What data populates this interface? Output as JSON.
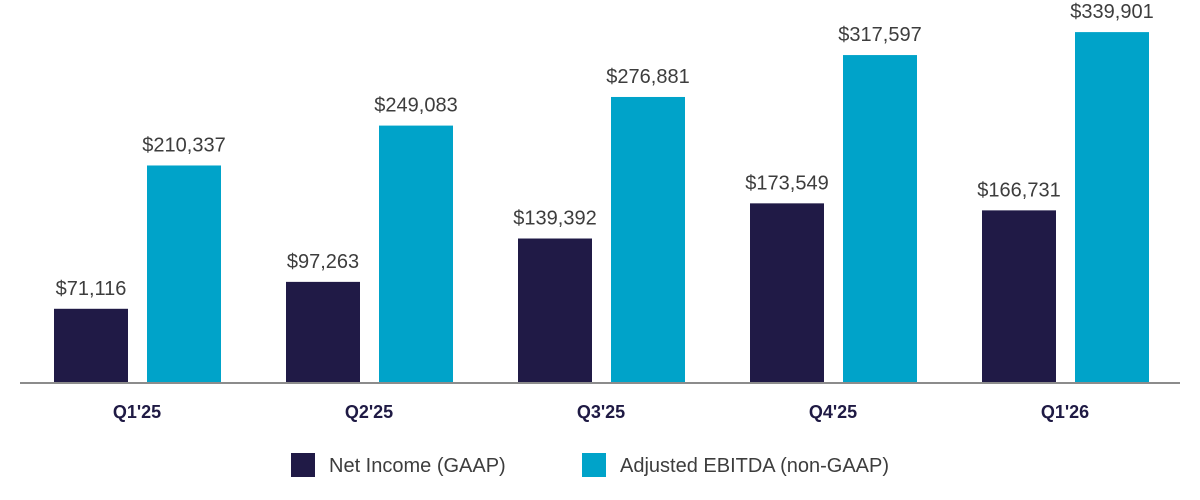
{
  "chart_data": {
    "type": "bar",
    "categories": [
      "Q1'25",
      "Q2'25",
      "Q3'25",
      "Q4'25",
      "Q1'26"
    ],
    "series": [
      {
        "name": "Net Income (GAAP)",
        "color": "#201a46",
        "values": [
          71116,
          97263,
          139392,
          173549,
          166731
        ],
        "labels": [
          "$71,116",
          "$97,263",
          "$139,392",
          "$173,549",
          "$166,731"
        ]
      },
      {
        "name": "Adjusted EBITDA (non-GAAP)",
        "color": "#00a3c9",
        "values": [
          210337,
          249083,
          276881,
          317597,
          339901
        ],
        "labels": [
          "$210,337",
          "$249,083",
          "$276,881",
          "$317,597",
          "$339,901"
        ]
      }
    ],
    "ylim": [
      0,
      340000
    ],
    "grid": false,
    "legend_position": "bottom",
    "axis_color": "#8c8c8c"
  }
}
